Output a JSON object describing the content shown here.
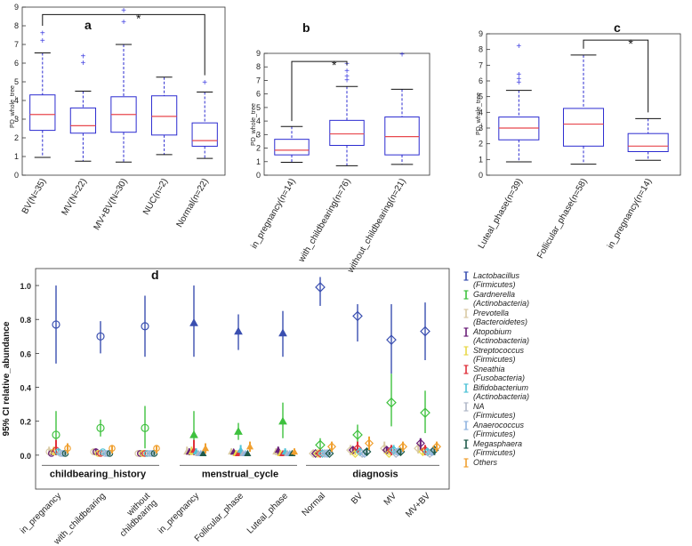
{
  "chart_data": [
    {
      "panel": "a",
      "type": "box",
      "ylabel": "PD_whole_tree",
      "ylim": [
        0,
        9
      ],
      "yticks": [
        0,
        1,
        2,
        3,
        4,
        5,
        6,
        7,
        8,
        9
      ],
      "categories": [
        "BV(N=35)",
        "MV(N=22)",
        "MV+BV(N=30)",
        "NUC(n=2)",
        "Normal(n=22)"
      ],
      "boxes": [
        {
          "q1": 2.4,
          "median": 3.25,
          "q3": 4.3,
          "low": 0.95,
          "high": 6.55,
          "outliers": [
            7.2,
            7.6
          ]
        },
        {
          "q1": 2.25,
          "median": 2.65,
          "q3": 3.6,
          "low": 0.75,
          "high": 4.5,
          "outliers": [
            6.0,
            6.35
          ]
        },
        {
          "q1": 2.3,
          "median": 3.25,
          "q3": 4.2,
          "low": 0.7,
          "high": 7.0,
          "outliers": [
            8.2,
            8.8
          ]
        },
        {
          "q1": 2.15,
          "median": 3.15,
          "q3": 4.25,
          "low": 1.1,
          "high": 5.25,
          "outliers": []
        },
        {
          "q1": 1.55,
          "median": 1.85,
          "q3": 2.8,
          "low": 0.9,
          "high": 4.45,
          "outliers": [
            4.95
          ]
        }
      ],
      "significance": {
        "from": 0,
        "to": 4,
        "label": "*",
        "level": 8.6
      }
    },
    {
      "panel": "b",
      "type": "box",
      "ylabel": "PD_whole_tree",
      "ylim": [
        0,
        9
      ],
      "yticks": [
        0,
        1,
        2,
        3,
        4,
        5,
        6,
        7,
        8,
        9
      ],
      "categories": [
        "in_pregnancy(n=14)",
        "with_childbearing(n=76)",
        "without_childbearing(n=21)"
      ],
      "boxes": [
        {
          "q1": 1.5,
          "median": 1.85,
          "q3": 2.65,
          "low": 0.95,
          "high": 3.6,
          "outliers": []
        },
        {
          "q1": 2.2,
          "median": 3.05,
          "q3": 4.05,
          "low": 0.7,
          "high": 6.55,
          "outliers": [
            7.0,
            7.3,
            7.7,
            8.2
          ]
        },
        {
          "q1": 1.5,
          "median": 2.85,
          "q3": 4.3,
          "low": 0.8,
          "high": 6.35,
          "outliers": [
            8.9
          ]
        }
      ],
      "significance": {
        "from": 0,
        "to": 1,
        "label": "*",
        "level": 8.4
      }
    },
    {
      "panel": "c",
      "type": "box",
      "ylabel": "PD_whole_tree",
      "ylim": [
        0,
        9
      ],
      "yticks": [
        0,
        1,
        2,
        3,
        4,
        5,
        6,
        7,
        8,
        9
      ],
      "categories": [
        "Luteal_phase(n=39)",
        "Follicular_phase(n=58)",
        "in_pregnancy(n=14)"
      ],
      "boxes": [
        {
          "q1": 2.25,
          "median": 3.0,
          "q3": 3.7,
          "low": 0.85,
          "high": 5.4,
          "outliers": [
            5.9,
            6.1,
            6.4,
            8.2
          ]
        },
        {
          "q1": 1.85,
          "median": 3.25,
          "q3": 4.25,
          "low": 0.7,
          "high": 7.65,
          "outliers": []
        },
        {
          "q1": 1.5,
          "median": 1.85,
          "q3": 2.65,
          "low": 0.95,
          "high": 3.6,
          "outliers": []
        }
      ],
      "significance": {
        "from": 1,
        "to": 2,
        "label": "*",
        "level": 8.6
      }
    },
    {
      "panel": "d",
      "type": "errorbar",
      "ylabel": "95% CI relative_abundance",
      "ylim": [
        -0.2,
        1.1
      ],
      "yticks": [
        0.0,
        0.2,
        0.4,
        0.6,
        0.8,
        1.0
      ],
      "groups": [
        {
          "label": "childbearing_history",
          "categories": [
            "in_pregnancy",
            "with_childbearing",
            "without_childbearing"
          ]
        },
        {
          "label": "menstrual_cycle",
          "categories": [
            "in_pregnancy",
            "Follicular_phase",
            "Luteal_phase"
          ]
        },
        {
          "label": "diagnosis",
          "categories": [
            "Normal",
            "BV",
            "MV",
            "MV+BV"
          ]
        }
      ],
      "x_tick_labels": [
        "in_pregnancy",
        "with_childbearing",
        "without\nchildbearing",
        "in_pregnancy",
        "Follicular_phase",
        "Luteal_phase",
        "Normal",
        "BV",
        "MV",
        "MV+BV"
      ],
      "series": [
        {
          "name": "Lactobacillus",
          "phylum": "(Firmicutes)",
          "color": "#3a4fb0",
          "points": [
            [
              0.77,
              0.54,
              1.0
            ],
            [
              0.7,
              0.6,
              0.79
            ],
            [
              0.76,
              0.58,
              0.94
            ],
            [
              0.78,
              0.58,
              1.0
            ],
            [
              0.73,
              0.62,
              0.83
            ],
            [
              0.72,
              0.58,
              0.85
            ],
            [
              0.99,
              0.88,
              1.05
            ],
            [
              0.82,
              0.67,
              0.89
            ],
            [
              0.68,
              0.48,
              0.89
            ],
            [
              0.73,
              0.56,
              0.9
            ]
          ]
        },
        {
          "name": "Gardnerella",
          "phylum": "(Actinobacteria)",
          "color": "#3ec13e",
          "points": [
            [
              0.12,
              0.0,
              0.26
            ],
            [
              0.16,
              0.11,
              0.21
            ],
            [
              0.16,
              0.04,
              0.29
            ],
            [
              0.12,
              0.0,
              0.26
            ],
            [
              0.14,
              0.09,
              0.19
            ],
            [
              0.2,
              0.1,
              0.31
            ],
            [
              0.06,
              0.01,
              0.1
            ],
            [
              0.12,
              0.05,
              0.18
            ],
            [
              0.31,
              0.17,
              0.48
            ],
            [
              0.25,
              0.13,
              0.38
            ]
          ]
        },
        {
          "name": "Prevotella",
          "phylum": "(Bacteroidetes)",
          "color": "#d9c9a3",
          "points": [
            [
              0.02,
              0.0,
              0.05
            ],
            [
              0.02,
              0.0,
              0.04
            ],
            [
              0.01,
              0.0,
              0.03
            ],
            [
              0.02,
              0.0,
              0.05
            ],
            [
              0.02,
              0.0,
              0.04
            ],
            [
              0.02,
              0.0,
              0.04
            ],
            [
              0.01,
              0.0,
              0.03
            ],
            [
              0.03,
              0.0,
              0.06
            ],
            [
              0.04,
              0.01,
              0.08
            ],
            [
              0.04,
              0.01,
              0.07
            ]
          ]
        },
        {
          "name": "Atopobium",
          "phylum": "(Actinobacteria)",
          "color": "#6a1f78",
          "points": [
            [
              0.01,
              0.0,
              0.03
            ],
            [
              0.02,
              0.0,
              0.04
            ],
            [
              0.01,
              0.0,
              0.02
            ],
            [
              0.02,
              0.0,
              0.04
            ],
            [
              0.02,
              0.0,
              0.03
            ],
            [
              0.03,
              0.0,
              0.05
            ],
            [
              0.01,
              0.0,
              0.02
            ],
            [
              0.03,
              0.01,
              0.05
            ],
            [
              0.03,
              0.01,
              0.05
            ],
            [
              0.07,
              0.03,
              0.1
            ]
          ]
        },
        {
          "name": "Streptococcus",
          "phylum": "(Firmicutes)",
          "color": "#e8d84a",
          "points": [
            [
              0.02,
              0.0,
              0.05
            ],
            [
              0.01,
              0.0,
              0.03
            ],
            [
              0.01,
              0.0,
              0.03
            ],
            [
              0.02,
              0.0,
              0.05
            ],
            [
              0.01,
              0.0,
              0.03
            ],
            [
              0.01,
              0.0,
              0.03
            ],
            [
              0.01,
              0.0,
              0.02
            ],
            [
              0.01,
              0.0,
              0.03
            ],
            [
              0.01,
              0.0,
              0.03
            ],
            [
              0.02,
              0.0,
              0.04
            ]
          ]
        },
        {
          "name": "Sneathia",
          "phylum": "(Fusobacteria)",
          "color": "#e0303a",
          "points": [
            [
              0.03,
              0.0,
              0.09
            ],
            [
              0.01,
              0.0,
              0.02
            ],
            [
              0.01,
              0.0,
              0.02
            ],
            [
              0.03,
              0.0,
              0.09
            ],
            [
              0.01,
              0.0,
              0.02
            ],
            [
              0.01,
              0.0,
              0.02
            ],
            [
              0.01,
              0.0,
              0.02
            ],
            [
              0.04,
              0.01,
              0.08
            ],
            [
              0.03,
              0.0,
              0.06
            ],
            [
              0.03,
              0.0,
              0.06
            ]
          ]
        },
        {
          "name": "Bifidobacterium",
          "phylum": "(Actinobacteria)",
          "color": "#4fc3d7",
          "points": [
            [
              0.02,
              0.0,
              0.04
            ],
            [
              0.02,
              0.0,
              0.03
            ],
            [
              0.01,
              0.0,
              0.02
            ],
            [
              0.02,
              0.0,
              0.04
            ],
            [
              0.03,
              0.0,
              0.06
            ],
            [
              0.02,
              0.0,
              0.04
            ],
            [
              0.01,
              0.0,
              0.03
            ],
            [
              0.02,
              0.0,
              0.04
            ],
            [
              0.03,
              0.0,
              0.06
            ],
            [
              0.02,
              0.0,
              0.04
            ]
          ]
        },
        {
          "name": "NA",
          "phylum": "(Firmicutes)",
          "color": "#b0b8c8",
          "points": [
            [
              0.01,
              0.0,
              0.02
            ],
            [
              0.01,
              0.0,
              0.02
            ],
            [
              0.01,
              0.0,
              0.02
            ],
            [
              0.01,
              0.0,
              0.02
            ],
            [
              0.01,
              0.0,
              0.02
            ],
            [
              0.01,
              0.0,
              0.02
            ],
            [
              0.01,
              0.0,
              0.02
            ],
            [
              0.01,
              0.0,
              0.02
            ],
            [
              0.01,
              0.0,
              0.03
            ],
            [
              0.01,
              0.0,
              0.03
            ]
          ]
        },
        {
          "name": "Anaerococcus",
          "phylum": "(Firmicutes)",
          "color": "#8fb4e0",
          "points": [
            [
              0.01,
              0.0,
              0.02
            ],
            [
              0.01,
              0.0,
              0.02
            ],
            [
              0.01,
              0.0,
              0.02
            ],
            [
              0.01,
              0.0,
              0.02
            ],
            [
              0.01,
              0.0,
              0.02
            ],
            [
              0.01,
              0.0,
              0.02
            ],
            [
              0.01,
              0.0,
              0.02
            ],
            [
              0.01,
              0.0,
              0.02
            ],
            [
              0.02,
              0.0,
              0.04
            ],
            [
              0.02,
              0.0,
              0.04
            ]
          ]
        },
        {
          "name": "Megasphaera",
          "phylum": "(Firmicutes)",
          "color": "#1f5a4a",
          "points": [
            [
              0.01,
              0.0,
              0.02
            ],
            [
              0.01,
              0.0,
              0.02
            ],
            [
              0.01,
              0.0,
              0.02
            ],
            [
              0.01,
              0.0,
              0.02
            ],
            [
              0.01,
              0.0,
              0.02
            ],
            [
              0.01,
              0.0,
              0.02
            ],
            [
              0.01,
              0.0,
              0.02
            ],
            [
              0.02,
              0.0,
              0.04
            ],
            [
              0.02,
              0.0,
              0.04
            ],
            [
              0.03,
              0.0,
              0.05
            ]
          ]
        },
        {
          "name": "Others",
          "phylum": "",
          "color": "#f0a030",
          "points": [
            [
              0.04,
              0.01,
              0.07
            ],
            [
              0.04,
              0.01,
              0.06
            ],
            [
              0.04,
              0.01,
              0.06
            ],
            [
              0.04,
              0.01,
              0.07
            ],
            [
              0.05,
              0.02,
              0.08
            ],
            [
              0.02,
              0.0,
              0.04
            ],
            [
              0.05,
              0.02,
              0.08
            ],
            [
              0.07,
              0.03,
              0.11
            ],
            [
              0.05,
              0.02,
              0.08
            ],
            [
              0.05,
              0.02,
              0.08
            ]
          ]
        }
      ]
    }
  ]
}
